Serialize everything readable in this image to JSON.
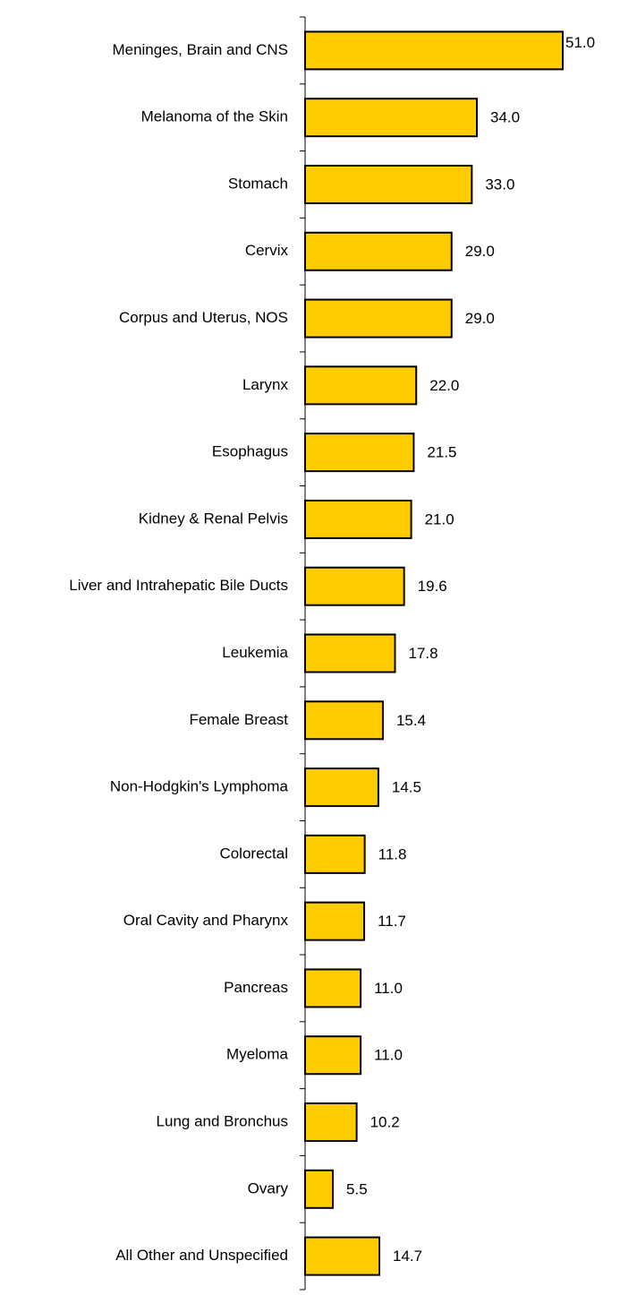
{
  "chart_data": {
    "type": "bar",
    "orientation": "horizontal",
    "color": "#ffcc00",
    "categories": [
      "Meninges, Brain and CNS",
      "Melanoma of the Skin",
      "Stomach",
      "Cervix",
      "Corpus and Uterus, NOS",
      "Larynx",
      "Esophagus",
      "Kidney & Renal Pelvis",
      "Liver and Intrahepatic Bile Ducts",
      "Leukemia",
      "Female Breast",
      "Non-Hodgkin's Lymphoma",
      "Colorectal",
      "Oral Cavity and Pharynx",
      "Pancreas",
      "Myeloma",
      "Lung and Bronchus",
      "Ovary",
      "All Other and Unspecified"
    ],
    "values": [
      51.0,
      34.0,
      33.0,
      29.0,
      29.0,
      22.0,
      21.5,
      21.0,
      19.6,
      17.8,
      15.4,
      14.5,
      11.8,
      11.7,
      11.0,
      11.0,
      10.2,
      5.5,
      14.7
    ],
    "value_labels": [
      "51.0",
      "34.0",
      "33.0",
      "29.0",
      "29.0",
      "22.0",
      "21.5",
      "21.0",
      "19.6",
      "17.8",
      "15.4",
      "14.5",
      "11.8",
      "11.7",
      "11.0",
      "11.0",
      "10.2",
      "5.5",
      "14.7"
    ]
  }
}
